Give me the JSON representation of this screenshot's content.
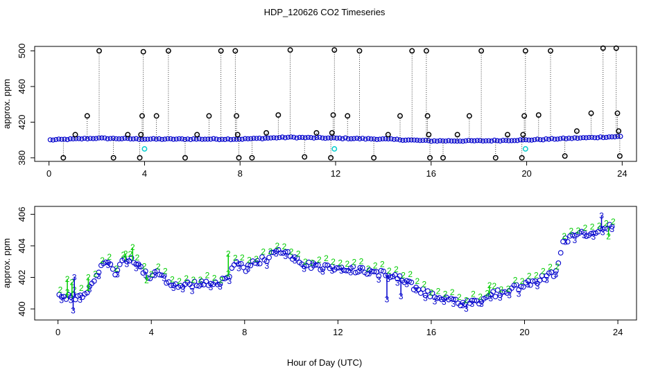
{
  "figure": {
    "title": "HDP_120626  CO2 Timeseries",
    "xlabel": "Hour of Day (UTC)"
  },
  "chart_data": [
    {
      "type": "scatter",
      "name": "top-panel",
      "ylabel": "approx. ppm",
      "xlim": [
        -0.6,
        24.6
      ],
      "ylim": [
        376,
        505
      ],
      "xticks": [
        0,
        4,
        8,
        12,
        16,
        20,
        24
      ],
      "yticks": [
        380,
        420,
        460,
        500
      ],
      "ytick_labels": [
        "380",
        "420",
        "460",
        "500"
      ],
      "colors": {
        "raw": "#000000",
        "mean": "#0000cc",
        "ref": "#00cccc"
      },
      "series": [
        {
          "name": "raw-spikes",
          "x": [
            0.6,
            1.1,
            1.6,
            2.1,
            2.7,
            3.3,
            3.8,
            3.85,
            3.9,
            3.95,
            4.5,
            5.0,
            5.7,
            6.2,
            6.7,
            7.2,
            7.8,
            7.85,
            7.9,
            7.95,
            8.5,
            9.1,
            9.6,
            10.1,
            10.7,
            11.2,
            11.8,
            11.85,
            11.9,
            11.95,
            12.5,
            13.0,
            13.6,
            14.2,
            14.7,
            15.2,
            15.8,
            15.85,
            15.9,
            15.95,
            16.5,
            17.1,
            17.6,
            18.1,
            18.7,
            19.2,
            19.8,
            19.85,
            19.9,
            19.95,
            20.5,
            21.0,
            21.6,
            22.1,
            22.7,
            23.2,
            23.75,
            23.8,
            23.85,
            23.9
          ],
          "y": [
            380,
            406,
            427,
            500,
            380,
            406,
            380,
            406,
            427,
            499,
            427,
            500,
            380,
            406,
            427,
            500,
            500,
            427,
            406,
            380,
            380,
            408,
            428,
            501,
            381,
            408,
            380,
            408,
            428,
            501,
            427,
            500,
            380,
            406,
            427,
            500,
            500,
            427,
            406,
            380,
            380,
            406,
            427,
            500,
            380,
            406,
            380,
            406,
            427,
            500,
            428,
            500,
            382,
            410,
            430,
            503,
            503,
            430,
            410,
            382
          ]
        },
        {
          "name": "reference",
          "x": [
            4.0,
            11.95,
            19.95
          ],
          "y": [
            390,
            390,
            390
          ]
        }
      ]
    },
    {
      "type": "scatter",
      "name": "bottom-panel",
      "ylabel": "approx. ppm",
      "xlim": [
        -1.0,
        24.8
      ],
      "ylim": [
        399.3,
        406.5
      ],
      "xticks": [
        0,
        4,
        8,
        12,
        16,
        20,
        24
      ],
      "yticks": [
        400,
        402,
        404,
        406
      ],
      "colors": {
        "circles": "#0000cc",
        "label2": "#00cc00",
        "label3": "#0000cc"
      },
      "profile": {
        "x": [
          0.0,
          0.3,
          0.6,
          0.9,
          1.2,
          1.5,
          1.8,
          2.1,
          2.4,
          2.7,
          3.0,
          3.3,
          3.6,
          3.9,
          4.2,
          4.5,
          4.8,
          5.2,
          5.6,
          6.0,
          6.5,
          7.0,
          7.4,
          7.6,
          8.0,
          8.4,
          8.8,
          9.2,
          9.6,
          10.0,
          10.5,
          11.0,
          11.5,
          12.0,
          12.5,
          13.0,
          13.5,
          14.0,
          14.5,
          15.0,
          15.5,
          16.0,
          16.5,
          17.0,
          17.5,
          18.0,
          18.5,
          19.0,
          19.5,
          20.0,
          20.5,
          21.0,
          21.4,
          21.6,
          22.0,
          22.5,
          23.0,
          23.5,
          23.8
        ],
        "y": [
          400.9,
          400.7,
          400.7,
          400.9,
          401.0,
          401.5,
          402.5,
          403.0,
          402.3,
          402.8,
          403.2,
          403.0,
          402.5,
          402.0,
          402.5,
          402.0,
          401.5,
          401.4,
          401.6,
          401.6,
          401.5,
          401.7,
          402.3,
          402.9,
          402.5,
          402.9,
          403.1,
          403.4,
          403.8,
          403.4,
          402.9,
          402.7,
          402.7,
          402.7,
          402.6,
          402.4,
          402.4,
          402.2,
          402.0,
          401.6,
          401.2,
          400.9,
          400.7,
          400.5,
          400.3,
          400.5,
          400.9,
          401.1,
          401.3,
          401.5,
          401.8,
          402.1,
          402.3,
          404.2,
          404.5,
          404.7,
          404.9,
          405.2,
          405.1
        ]
      },
      "spikes": [
        {
          "x": 0.4,
          "y": 401.9,
          "label": "2"
        },
        {
          "x": 0.6,
          "y": 401.7,
          "label": "2"
        },
        {
          "x": 0.65,
          "y": 399.9,
          "label": "3"
        },
        {
          "x": 0.7,
          "y": 402.0,
          "label": "3"
        },
        {
          "x": 1.3,
          "y": 402.0,
          "label": "2"
        },
        {
          "x": 2.9,
          "y": 403.5,
          "label": "2"
        },
        {
          "x": 3.2,
          "y": 403.9,
          "label": "2"
        },
        {
          "x": 3.5,
          "y": 402.7,
          "label": "3"
        },
        {
          "x": 3.8,
          "y": 401.8,
          "label": "2"
        },
        {
          "x": 7.3,
          "y": 403.5,
          "label": "2"
        },
        {
          "x": 14.1,
          "y": 400.6,
          "label": "3"
        },
        {
          "x": 14.7,
          "y": 400.8,
          "label": "3"
        },
        {
          "x": 17.5,
          "y": 400.0,
          "label": "3"
        },
        {
          "x": 18.5,
          "y": 401.5,
          "label": "2"
        },
        {
          "x": 23.3,
          "y": 405.9,
          "label": "3"
        },
        {
          "x": 23.6,
          "y": 404.6,
          "label": "2"
        }
      ]
    }
  ]
}
